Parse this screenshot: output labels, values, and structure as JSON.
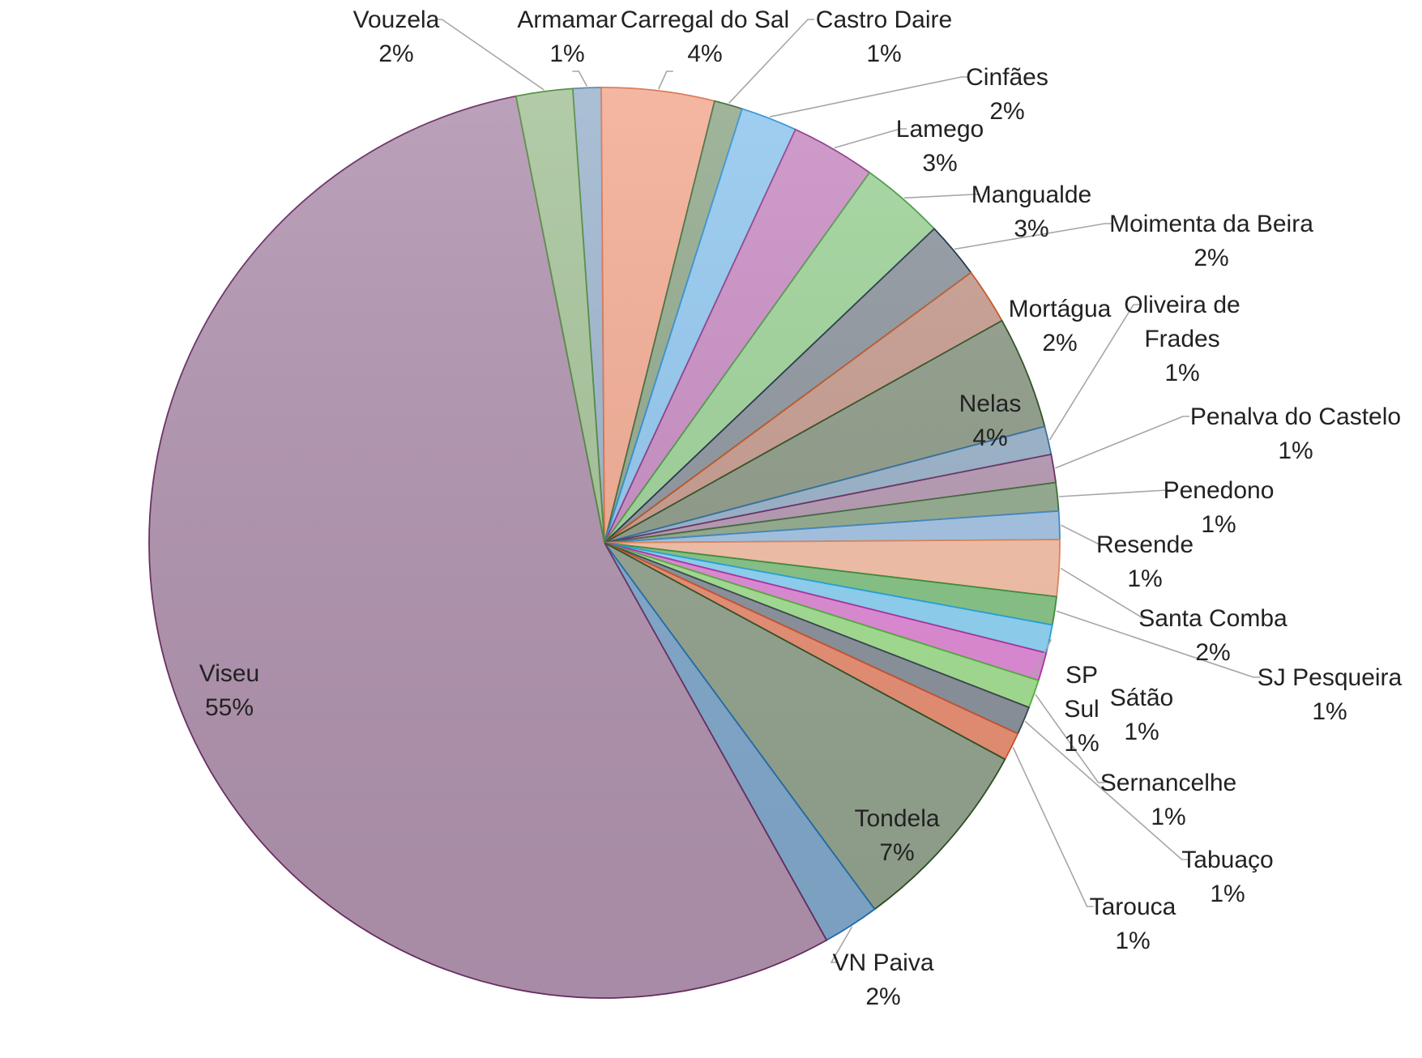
{
  "chart_data": {
    "type": "pie",
    "title": "",
    "slices": [
      {
        "label": "Armamar",
        "value": 1,
        "display": "1%",
        "color": "#9fb6cf",
        "stroke": "#5a7fa5"
      },
      {
        "label": "Carregal do Sal",
        "value": 4,
        "display": "4%",
        "color": "#f3ad95",
        "stroke": "#d9734f"
      },
      {
        "label": "Castro Daire",
        "value": 1,
        "display": "1%",
        "color": "#93ab8e",
        "stroke": "#3f6b38"
      },
      {
        "label": "Cinfães",
        "value": 2,
        "display": "2%",
        "color": "#93c8ef",
        "stroke": "#2f8fd6"
      },
      {
        "label": "Lamego",
        "value": 3,
        "display": "3%",
        "color": "#c98fc4",
        "stroke": "#8f3a8a"
      },
      {
        "label": "Mangualde",
        "value": 3,
        "display": "3%",
        "color": "#9fd39a",
        "stroke": "#4c9a45"
      },
      {
        "label": "Moimenta da Beira",
        "value": 2,
        "display": "2%",
        "color": "#8f969e",
        "stroke": "#1f3148"
      },
      {
        "label": "Mortágua",
        "value": 2,
        "display": "2%",
        "color": "#c79c90",
        "stroke": "#c0541f"
      },
      {
        "label": "Nelas",
        "value": 4,
        "display": "4%",
        "color": "#8f9c89",
        "stroke": "#2d4f22"
      },
      {
        "label": "Oliveira de Frades",
        "value": 1,
        "display": "1%",
        "color": "#9ab2c9",
        "stroke": "#2f6ea1"
      },
      {
        "label": "Penalva do Castelo",
        "value": 1,
        "display": "1%",
        "color": "#b69ab3",
        "stroke": "#6a2d64"
      },
      {
        "label": "Penedono",
        "value": 1,
        "display": "1%",
        "color": "#93ab8e",
        "stroke": "#3f6b38"
      },
      {
        "label": "Resende",
        "value": 1,
        "display": "1%",
        "color": "#a3c4e4",
        "stroke": "#3f86c6"
      },
      {
        "label": "Santa Comba",
        "value": 2,
        "display": "2%",
        "color": "#f6c0a8",
        "stroke": "#e0845c"
      },
      {
        "label": "SJ Pesqueira",
        "value": 1,
        "display": "1%",
        "color": "#86c486",
        "stroke": "#3a8f3a"
      },
      {
        "label": "SP Sul",
        "value": 1,
        "display": "1%",
        "color": "#8fd3f5",
        "stroke": "#1fa5e0"
      },
      {
        "label": "Sátão",
        "value": 1,
        "display": "1%",
        "color": "#e08ad6",
        "stroke": "#b02fa3"
      },
      {
        "label": "Sernancelhe",
        "value": 1,
        "display": "1%",
        "color": "#a4e092",
        "stroke": "#4fb33a"
      },
      {
        "label": "Tabuaço",
        "value": 1,
        "display": "1%",
        "color": "#8a929c",
        "stroke": "#3a4450"
      },
      {
        "label": "Tarouca",
        "value": 1,
        "display": "1%",
        "color": "#e98f74",
        "stroke": "#d0502a"
      },
      {
        "label": "Tondela",
        "value": 7,
        "display": "7%",
        "color": "#93a48f",
        "stroke": "#2d4f22"
      },
      {
        "label": "VN Paiva",
        "value": 2,
        "display": "2%",
        "color": "#82a9cc",
        "stroke": "#1f6fb2"
      },
      {
        "label": "Viseu",
        "value": 55,
        "display": "55%",
        "color": "#b294b0",
        "stroke": "#6a2d64"
      },
      {
        "label": "Vouzela",
        "value": 2,
        "display": "2%",
        "color": "#a8c49c",
        "stroke": "#4c8a3a"
      }
    ],
    "legend": "none",
    "labels": "category name and percentage next to each slice"
  }
}
